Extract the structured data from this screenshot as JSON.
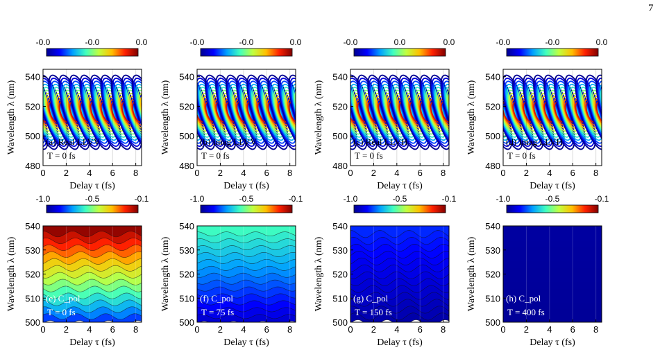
{
  "page_number": "7",
  "colors": {
    "colormap": [
      "#00008f",
      "#0000ff",
      "#00a0ff",
      "#40ffbf",
      "#c0ff40",
      "#ffc000",
      "#ff2000",
      "#800000"
    ]
  },
  "chart_data": [
    {
      "type": "heatmap",
      "panel_label": "(a) Real LLVV",
      "time_label": "T = 0 fs",
      "colorbar_ticks": [
        "-0.0",
        "-0.0",
        "0.0"
      ],
      "xlabel": "Delay τ (fs)",
      "ylabel": "Wavelength λ (nm)",
      "xlim": [
        0,
        8.5
      ],
      "ylim": [
        480,
        545
      ],
      "xticks": [
        0,
        2,
        4,
        6,
        8
      ],
      "yticks": [
        480,
        500,
        520,
        540
      ],
      "contour_levels": 10,
      "fringe_period_fs": 0.9,
      "phase": 0
    },
    {
      "type": "heatmap",
      "panel_label": "(b) Imag LLVV",
      "time_label": "T = 0 fs",
      "colorbar_ticks": [
        "-0.0",
        "-0.0",
        "0.0"
      ],
      "xlabel": "Delay τ (fs)",
      "ylabel": "Wavelength λ (nm)",
      "xlim": [
        0,
        8.5
      ],
      "ylim": [
        480,
        545
      ],
      "xticks": [
        0,
        2,
        4,
        6,
        8
      ],
      "yticks": [
        480,
        500,
        520,
        540
      ],
      "contour_levels": 10,
      "fringe_period_fs": 0.9,
      "phase": 1.57
    },
    {
      "type": "heatmap",
      "panel_label": "(c) Real LLVH",
      "time_label": "T = 0 fs",
      "colorbar_ticks": [
        "-0.0",
        "0.0",
        "0.0"
      ],
      "xlabel": "Delay τ (fs)",
      "ylabel": "Wavelength λ (nm)",
      "xlim": [
        0,
        8.5
      ],
      "ylim": [
        480,
        545
      ],
      "xticks": [
        0,
        2,
        4,
        6,
        8
      ],
      "yticks": [
        480,
        500,
        520,
        540
      ],
      "contour_levels": 10,
      "fringe_period_fs": 0.9,
      "phase": 0.8
    },
    {
      "type": "heatmap",
      "panel_label": "(d) Imag LLVH",
      "time_label": "T = 0 fs",
      "colorbar_ticks": [
        "-0.0",
        "-0.0",
        "0.0"
      ],
      "xlabel": "Delay τ (fs)",
      "ylabel": "Wavelength λ (nm)",
      "xlim": [
        0,
        8.5
      ],
      "ylim": [
        480,
        545
      ],
      "xticks": [
        0,
        2,
        4,
        6,
        8
      ],
      "yticks": [
        480,
        500,
        520,
        540
      ],
      "contour_levels": 10,
      "fringe_period_fs": 0.9,
      "phase": 2.4
    },
    {
      "type": "heatmap",
      "panel_label": "(e) C_pol",
      "time_label": "T = 0 fs",
      "colorbar_ticks": [
        "-1.0",
        "-0.5",
        "-0.1"
      ],
      "xlabel": "Delay τ (fs)",
      "ylabel": "Wavelength λ (nm)",
      "xlim": [
        0,
        8.5
      ],
      "ylim": [
        500,
        540
      ],
      "xticks": [
        0,
        2,
        4,
        6,
        8
      ],
      "yticks": [
        500,
        510,
        520,
        530,
        540
      ],
      "value_range": [
        -1.0,
        -0.1
      ],
      "value_at_500nm": -0.82,
      "value_at_540nm": -0.12,
      "wave_amplitude_nm": 1.2
    },
    {
      "type": "heatmap",
      "panel_label": "(f) C_pol",
      "time_label": "T = 75 fs",
      "colorbar_ticks": [
        "-1.0",
        "-0.5",
        "-0.1"
      ],
      "xlabel": "Delay τ (fs)",
      "ylabel": "Wavelength λ (nm)",
      "xlim": [
        0,
        8.5
      ],
      "ylim": [
        500,
        540
      ],
      "xticks": [
        0,
        2,
        4,
        6,
        8
      ],
      "yticks": [
        500,
        510,
        520,
        530,
        540
      ],
      "value_range": [
        -1.0,
        -0.1
      ],
      "value_at_500nm": -0.92,
      "value_at_540nm": -0.62,
      "wave_amplitude_nm": 0.9
    },
    {
      "type": "heatmap",
      "panel_label": "(g) C_pol",
      "time_label": "T = 150 fs",
      "colorbar_ticks": [
        "-1.0",
        "-0.5",
        "-0.1"
      ],
      "xlabel": "Delay τ (fs)",
      "ylabel": "Wavelength λ (nm)",
      "xlim": [
        0,
        8.5
      ],
      "ylim": [
        500,
        540
      ],
      "xticks": [
        0,
        2,
        4,
        6,
        8
      ],
      "yticks": [
        500,
        510,
        520,
        530,
        540
      ],
      "value_range": [
        -1.0,
        -0.1
      ],
      "value_at_500nm": -0.97,
      "value_at_540nm": -0.84,
      "wave_amplitude_nm": 1.5
    },
    {
      "type": "heatmap",
      "panel_label": "(h) C_pol",
      "time_label": "T = 400 fs",
      "colorbar_ticks": [
        "-1.0",
        "-0.5",
        "-0.1"
      ],
      "xlabel": "Delay τ (fs)",
      "ylabel": "Wavelength λ (nm)",
      "xlim": [
        0,
        8.5
      ],
      "ylim": [
        500,
        540
      ],
      "xticks": [
        0,
        2,
        4,
        6,
        8
      ],
      "yticks": [
        500,
        510,
        520,
        530,
        540
      ],
      "value_range": [
        -1.0,
        -0.1
      ],
      "value_at_500nm": -0.99,
      "value_at_540nm": -0.98,
      "wave_amplitude_nm": 0.0
    }
  ]
}
